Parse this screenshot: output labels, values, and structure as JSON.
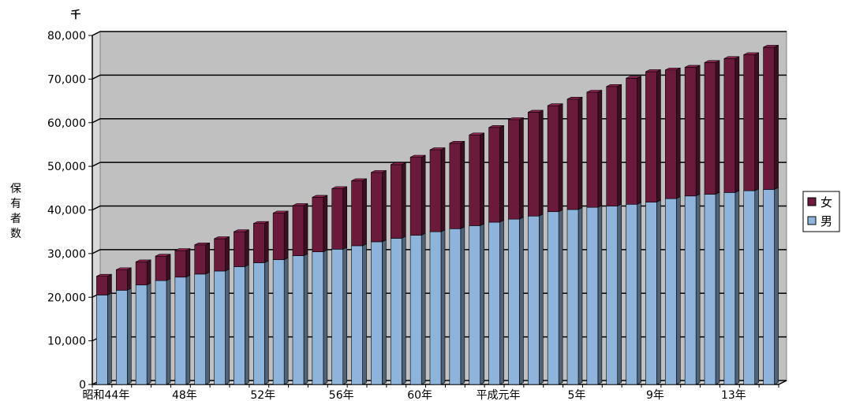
{
  "chart_data": {
    "type": "bar",
    "stacked": true,
    "unit_label": "千",
    "ylabel": "保有者数",
    "ylim": [
      0,
      80000
    ],
    "yticks": [
      0,
      10000,
      20000,
      30000,
      40000,
      50000,
      60000,
      70000,
      80000
    ],
    "ytick_labels": [
      "0",
      "10,000",
      "20,000",
      "30,000",
      "40,000",
      "50,000",
      "60,000",
      "70,000",
      "80,000"
    ],
    "grid": true,
    "legend_position": "right",
    "categories": [
      "昭和44年",
      "45",
      "46",
      "47",
      "48年",
      "49",
      "50",
      "51",
      "52年",
      "53",
      "54",
      "55",
      "56年",
      "57",
      "58",
      "59",
      "60年",
      "61",
      "62",
      "63",
      "平成元年",
      "2",
      "3",
      "4",
      "5年",
      "6",
      "7",
      "8",
      "9年",
      "10",
      "11",
      "12",
      "13年",
      "14",
      "15"
    ],
    "xtick_labels": [
      {
        "index": 0,
        "label": "昭和44年"
      },
      {
        "index": 4,
        "label": "48年"
      },
      {
        "index": 8,
        "label": "52年"
      },
      {
        "index": 12,
        "label": "56年"
      },
      {
        "index": 16,
        "label": "60年"
      },
      {
        "index": 20,
        "label": "平成元年"
      },
      {
        "index": 24,
        "label": "5年"
      },
      {
        "index": 28,
        "label": "9年"
      },
      {
        "index": 32,
        "label": "13年"
      }
    ],
    "series": [
      {
        "name": "男",
        "color": "#8eb4dc",
        "values": [
          20500,
          21600,
          22800,
          23800,
          24600,
          25300,
          26000,
          27000,
          27900,
          28600,
          29500,
          30400,
          31000,
          31800,
          32700,
          33500,
          34200,
          35000,
          35700,
          36400,
          37200,
          37900,
          38600,
          39600,
          40100,
          40600,
          40900,
          41300,
          41800,
          42600,
          43200,
          43600,
          44000,
          44400,
          44700
        ]
      },
      {
        "name": "女",
        "color": "#6b1a3c",
        "values": [
          4300,
          4700,
          5300,
          5600,
          6100,
          6700,
          7400,
          8000,
          9000,
          10700,
          11500,
          12500,
          13900,
          14900,
          15900,
          16900,
          17900,
          18800,
          19600,
          20800,
          21700,
          22800,
          23800,
          24300,
          25300,
          26400,
          27400,
          28900,
          29900,
          29500,
          29500,
          30200,
          30700,
          31200,
          32600
        ]
      }
    ]
  }
}
